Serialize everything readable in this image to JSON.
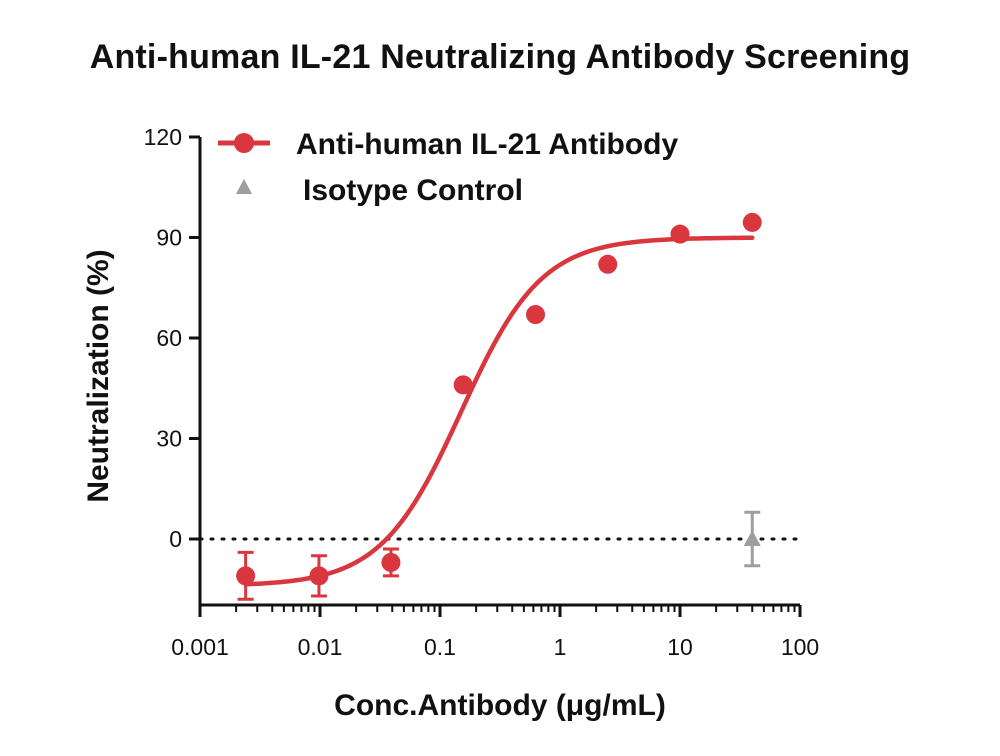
{
  "chart_data": {
    "type": "scatter",
    "title": "Anti-human IL-21 Neutralizing Antibody Screening",
    "xlabel": "Conc.Antibody (μg/mL)",
    "ylabel": "Neutralization (%)",
    "xscale": "log",
    "xlim": [
      0.001,
      100
    ],
    "ylim": [
      -20,
      120
    ],
    "xticks": [
      0.001,
      0.01,
      0.1,
      1,
      10,
      100
    ],
    "xtick_labels": [
      "0.001",
      "0.01",
      "0.1",
      "1",
      "10",
      "100"
    ],
    "yticks": [
      0,
      30,
      60,
      90,
      120
    ],
    "ytick_labels": [
      "0",
      "30",
      "60",
      "90",
      "120"
    ],
    "reference_line": {
      "y": 0,
      "style": "dotted"
    },
    "legend_position": "top-left",
    "series": [
      {
        "name": "Anti-human IL-21 Antibody",
        "marker": "circle",
        "color": "#D9363E",
        "points": [
          {
            "x": 0.0024,
            "y": -11,
            "err": 7
          },
          {
            "x": 0.0098,
            "y": -11,
            "err": 6
          },
          {
            "x": 0.039,
            "y": -7,
            "err": 4
          },
          {
            "x": 0.156,
            "y": 46,
            "err": 0
          },
          {
            "x": 0.625,
            "y": 67,
            "err": 0
          },
          {
            "x": 2.5,
            "y": 82,
            "err": 0
          },
          {
            "x": 10,
            "y": 91,
            "err": 0
          },
          {
            "x": 40,
            "y": 94.5,
            "err": 0
          }
        ],
        "fit": {
          "model": "4PL",
          "bottom": -14,
          "top": 90,
          "ec50": 0.15,
          "hill": 1.3
        }
      },
      {
        "name": "Isotype Control",
        "marker": "triangle",
        "color": "#9E9E9E",
        "points": [
          {
            "x": 40,
            "y": 0,
            "err": 8
          }
        ]
      }
    ]
  }
}
